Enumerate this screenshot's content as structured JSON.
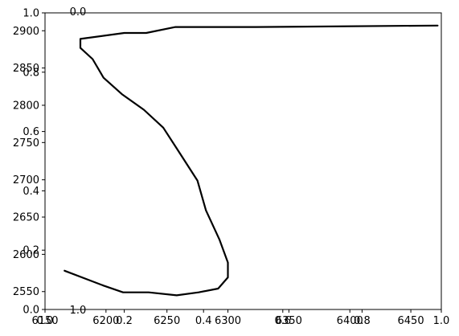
{
  "chart_data": {
    "type": "line",
    "title": "",
    "xlabel": "",
    "ylabel": "",
    "grid": false,
    "legend": "none",
    "primary_x": {
      "range": [
        6150,
        6475
      ],
      "ticks": [
        6150,
        6200,
        6250,
        6300,
        6350,
        6400,
        6450
      ],
      "tick_labels": [
        "6150",
        "6200",
        "6250",
        "6300",
        "6350",
        "6400",
        "6450"
      ]
    },
    "primary_y": {
      "range": [
        2526,
        2924
      ],
      "ticks": [
        2550,
        2600,
        2650,
        2700,
        2750,
        2800,
        2850,
        2900
      ],
      "tick_labels": [
        "2550",
        "2600",
        "2650",
        "2700",
        "2750",
        "2800",
        "2850",
        "2900"
      ]
    },
    "overlay_axes_ticks": [
      0.0,
      0.2,
      0.4,
      0.6,
      0.8,
      1.0
    ],
    "overlay_axes_labels": [
      "0.0",
      "0.2",
      "0.4",
      "0.6",
      "0.8",
      "1.0"
    ],
    "series": [
      {
        "color": "#000000",
        "x": [
          6166,
          6198,
          6214,
          6235,
          6258,
          6276,
          6292,
          6300,
          6300,
          6293,
          6282,
          6275,
          6260,
          6247,
          6231,
          6213,
          6198,
          6189,
          6179,
          6179,
          6215,
          6233,
          6257,
          6323,
          6472
        ],
        "y": [
          2578,
          2558,
          2549,
          2549,
          2545,
          2549,
          2554,
          2569,
          2589,
          2620,
          2659,
          2699,
          2737,
          2770,
          2794,
          2815,
          2837,
          2862,
          2877,
          2889,
          2897,
          2897,
          2905,
          2905,
          2907
        ]
      }
    ]
  }
}
